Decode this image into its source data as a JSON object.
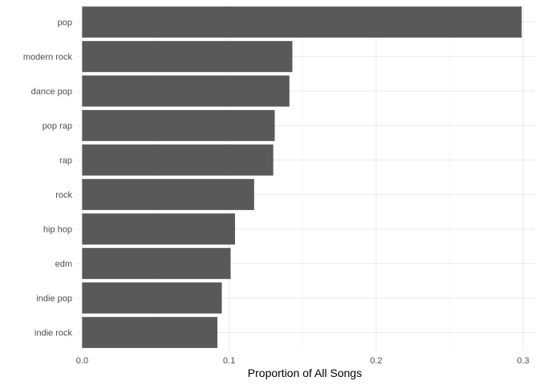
{
  "chart_data": {
    "type": "bar",
    "orientation": "horizontal",
    "categories": [
      "pop",
      "modern rock",
      "dance pop",
      "pop rap",
      "rap",
      "rock",
      "hip hop",
      "edm",
      "indie pop",
      "indie rock"
    ],
    "values": [
      0.299,
      0.143,
      0.141,
      0.131,
      0.13,
      0.117,
      0.104,
      0.101,
      0.095,
      0.092
    ],
    "xlabel": "Proportion of All Songs",
    "ylabel": "",
    "title": "",
    "xlim": [
      -0.0035,
      0.3075
    ],
    "x_ticks": [
      0.0,
      0.1,
      0.2,
      0.3
    ],
    "x_tick_labels": [
      "0.0",
      "0.1",
      "0.2",
      "0.3"
    ],
    "grid": true,
    "theme": "minimal",
    "colors": {
      "bar": "#595959",
      "grid_major": "#ebebeb",
      "grid_minor": "#f2f2f2"
    }
  }
}
